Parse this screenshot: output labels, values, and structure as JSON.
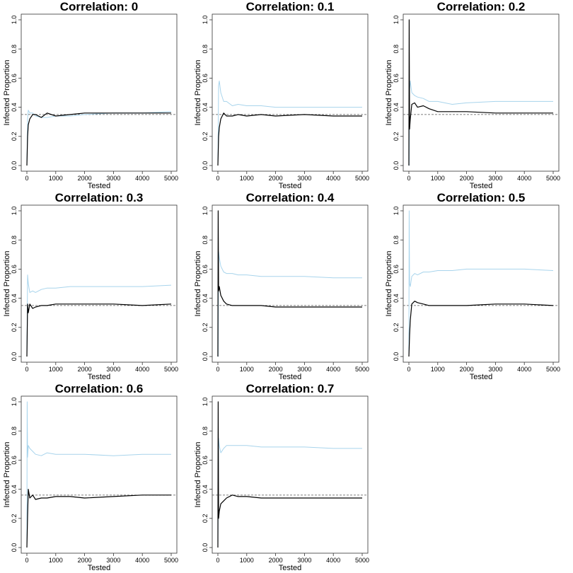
{
  "chart_data": [
    {
      "type": "line",
      "title": "Correlation: 0",
      "xlabel": "Tested",
      "ylabel": "Infected Proportion",
      "xlim": [
        0,
        5000
      ],
      "ylim": [
        0,
        1
      ],
      "xticks": [
        "0",
        "1000",
        "2000",
        "3000",
        "4000",
        "5000"
      ],
      "yticks": [
        "0.0",
        "0.2",
        "0.4",
        "0.6",
        "0.8",
        "1.0"
      ],
      "reference_line": 0.35,
      "series": [
        {
          "color": "#000000",
          "x": [
            0,
            25,
            50,
            100,
            200,
            300,
            500,
            700,
            1000,
            1500,
            2000,
            3000,
            4000,
            5000
          ],
          "y": [
            0.0,
            0.2,
            0.28,
            0.32,
            0.35,
            0.35,
            0.33,
            0.36,
            0.34,
            0.35,
            0.36,
            0.36,
            0.36,
            0.36
          ]
        },
        {
          "color": "#a8d4ec",
          "x": [
            0,
            25,
            50,
            100,
            200,
            300,
            500,
            700,
            1000,
            1500,
            2000,
            3000,
            4000,
            5000
          ],
          "y": [
            0.0,
            0.32,
            0.38,
            0.36,
            0.36,
            0.34,
            0.33,
            0.33,
            0.34,
            0.34,
            0.35,
            0.36,
            0.36,
            0.37
          ]
        }
      ]
    },
    {
      "type": "line",
      "title": "Correlation: 0.1",
      "xlabel": "Tested",
      "ylabel": "Infected Proportion",
      "xlim": [
        0,
        5000
      ],
      "ylim": [
        0,
        1
      ],
      "xticks": [
        "0",
        "1000",
        "2000",
        "3000",
        "4000",
        "5000"
      ],
      "yticks": [
        "0.0",
        "0.2",
        "0.4",
        "0.6",
        "0.8",
        "1.0"
      ],
      "reference_line": 0.35,
      "series": [
        {
          "color": "#000000",
          "x": [
            0,
            25,
            50,
            100,
            200,
            300,
            500,
            700,
            1000,
            1500,
            2000,
            3000,
            4000,
            5000
          ],
          "y": [
            0.0,
            0.2,
            0.26,
            0.32,
            0.36,
            0.34,
            0.34,
            0.35,
            0.34,
            0.35,
            0.34,
            0.35,
            0.34,
            0.34
          ]
        },
        {
          "color": "#a8d4ec",
          "x": [
            0,
            25,
            50,
            100,
            200,
            300,
            500,
            700,
            1000,
            1500,
            2000,
            3000,
            4000,
            5000
          ],
          "y": [
            0.0,
            0.55,
            0.58,
            0.5,
            0.44,
            0.44,
            0.41,
            0.42,
            0.41,
            0.41,
            0.4,
            0.4,
            0.4,
            0.4
          ]
        }
      ]
    },
    {
      "type": "line",
      "title": "Correlation: 0.2",
      "xlabel": "Tested",
      "ylabel": "Infected Proportion",
      "xlim": [
        0,
        5000
      ],
      "ylim": [
        0,
        1
      ],
      "xticks": [
        "0",
        "1000",
        "2000",
        "3000",
        "4000",
        "5000"
      ],
      "yticks": [
        "0.0",
        "0.2",
        "0.4",
        "0.6",
        "0.8",
        "1.0"
      ],
      "reference_line": 0.35,
      "series": [
        {
          "color": "#000000",
          "x": [
            0,
            10,
            25,
            50,
            100,
            200,
            300,
            500,
            700,
            1000,
            1500,
            2000,
            3000,
            4000,
            5000
          ],
          "y": [
            0.0,
            1.0,
            0.25,
            0.32,
            0.42,
            0.43,
            0.4,
            0.41,
            0.39,
            0.37,
            0.37,
            0.37,
            0.36,
            0.36,
            0.36
          ]
        },
        {
          "color": "#a8d4ec",
          "x": [
            0,
            10,
            25,
            50,
            100,
            200,
            300,
            500,
            700,
            1000,
            1500,
            2000,
            3000,
            4000,
            5000
          ],
          "y": [
            0.0,
            0.0,
            0.52,
            0.58,
            0.5,
            0.48,
            0.47,
            0.46,
            0.44,
            0.44,
            0.42,
            0.43,
            0.44,
            0.44,
            0.44
          ]
        }
      ]
    },
    {
      "type": "line",
      "title": "Correlation: 0.3",
      "xlabel": "Tested",
      "ylabel": "Infected Proportion",
      "xlim": [
        0,
        5000
      ],
      "ylim": [
        0,
        1
      ],
      "xticks": [
        "0",
        "1000",
        "2000",
        "3000",
        "4000",
        "5000"
      ],
      "yticks": [
        "0.0",
        "0.2",
        "0.4",
        "0.6",
        "0.8",
        "1.0"
      ],
      "reference_line": 0.35,
      "series": [
        {
          "color": "#000000",
          "x": [
            0,
            25,
            50,
            100,
            200,
            300,
            500,
            700,
            1000,
            1500,
            2000,
            3000,
            4000,
            5000
          ],
          "y": [
            0.0,
            0.36,
            0.3,
            0.36,
            0.33,
            0.34,
            0.35,
            0.35,
            0.36,
            0.36,
            0.36,
            0.36,
            0.35,
            0.36
          ]
        },
        {
          "color": "#a8d4ec",
          "x": [
            0,
            25,
            50,
            100,
            200,
            300,
            500,
            700,
            1000,
            1500,
            2000,
            3000,
            4000,
            5000
          ],
          "y": [
            0.0,
            0.56,
            0.5,
            0.44,
            0.45,
            0.44,
            0.46,
            0.47,
            0.47,
            0.48,
            0.48,
            0.48,
            0.48,
            0.49
          ]
        }
      ]
    },
    {
      "type": "line",
      "title": "Correlation: 0.4",
      "xlabel": "Tested",
      "ylabel": "Infected Proportion",
      "xlim": [
        0,
        5000
      ],
      "ylim": [
        0,
        1
      ],
      "xticks": [
        "0",
        "1000",
        "2000",
        "3000",
        "4000",
        "5000"
      ],
      "yticks": [
        "0.0",
        "0.2",
        "0.4",
        "0.6",
        "0.8",
        "1.0"
      ],
      "reference_line": 0.35,
      "series": [
        {
          "color": "#000000",
          "x": [
            0,
            10,
            25,
            50,
            100,
            200,
            300,
            500,
            700,
            1000,
            1500,
            2000,
            3000,
            4000,
            5000
          ],
          "y": [
            0.0,
            1.0,
            0.45,
            0.48,
            0.42,
            0.38,
            0.36,
            0.35,
            0.35,
            0.35,
            0.35,
            0.34,
            0.34,
            0.34,
            0.34
          ]
        },
        {
          "color": "#a8d4ec",
          "x": [
            0,
            10,
            25,
            50,
            100,
            200,
            300,
            500,
            700,
            1000,
            1500,
            2000,
            3000,
            4000,
            5000
          ],
          "y": [
            0.0,
            0.0,
            0.72,
            0.68,
            0.62,
            0.58,
            0.57,
            0.57,
            0.56,
            0.56,
            0.55,
            0.55,
            0.55,
            0.54,
            0.54
          ]
        }
      ]
    },
    {
      "type": "line",
      "title": "Correlation: 0.5",
      "xlabel": "Tested",
      "ylabel": "Infected Proportion",
      "xlim": [
        0,
        5000
      ],
      "ylim": [
        0,
        1
      ],
      "xticks": [
        "0",
        "1000",
        "2000",
        "3000",
        "4000",
        "5000"
      ],
      "yticks": [
        "0.0",
        "0.2",
        "0.4",
        "0.6",
        "0.8",
        "1.0"
      ],
      "reference_line": 0.35,
      "series": [
        {
          "color": "#000000",
          "x": [
            0,
            25,
            50,
            100,
            200,
            300,
            500,
            700,
            1000,
            1500,
            2000,
            3000,
            4000,
            5000
          ],
          "y": [
            0.0,
            0.15,
            0.25,
            0.36,
            0.38,
            0.37,
            0.36,
            0.35,
            0.35,
            0.35,
            0.35,
            0.36,
            0.36,
            0.35
          ]
        },
        {
          "color": "#a8d4ec",
          "x": [
            0,
            10,
            25,
            50,
            100,
            200,
            300,
            500,
            700,
            1000,
            1500,
            2000,
            3000,
            4000,
            5000
          ],
          "y": [
            0.0,
            1.0,
            0.5,
            0.48,
            0.55,
            0.57,
            0.56,
            0.58,
            0.58,
            0.59,
            0.59,
            0.6,
            0.6,
            0.6,
            0.59
          ]
        }
      ]
    },
    {
      "type": "line",
      "title": "Correlation: 0.6",
      "xlabel": "Tested",
      "ylabel": "Infected Proportion",
      "xlim": [
        0,
        5000
      ],
      "ylim": [
        0,
        1
      ],
      "xticks": [
        "0",
        "1000",
        "2000",
        "3000",
        "4000",
        "5000"
      ],
      "yticks": [
        "0.0",
        "0.2",
        "0.4",
        "0.6",
        "0.8",
        "1.0"
      ],
      "reference_line": 0.36,
      "series": [
        {
          "color": "#000000",
          "x": [
            0,
            25,
            50,
            100,
            200,
            300,
            500,
            700,
            1000,
            1500,
            2000,
            3000,
            4000,
            5000
          ],
          "y": [
            0.0,
            0.22,
            0.4,
            0.34,
            0.36,
            0.33,
            0.34,
            0.34,
            0.35,
            0.35,
            0.34,
            0.35,
            0.36,
            0.36
          ]
        },
        {
          "color": "#a8d4ec",
          "x": [
            0,
            10,
            25,
            50,
            100,
            200,
            300,
            500,
            700,
            1000,
            1500,
            2000,
            3000,
            4000,
            5000
          ],
          "y": [
            0.0,
            1.0,
            0.62,
            0.7,
            0.68,
            0.66,
            0.64,
            0.63,
            0.65,
            0.64,
            0.64,
            0.64,
            0.63,
            0.64,
            0.64
          ]
        }
      ]
    },
    {
      "type": "line",
      "title": "Correlation: 0.7",
      "xlabel": "Tested",
      "ylabel": "Infected Proportion",
      "xlim": [
        0,
        5000
      ],
      "ylim": [
        0,
        1
      ],
      "xticks": [
        "0",
        "1000",
        "2000",
        "3000",
        "4000",
        "5000"
      ],
      "yticks": [
        "0.0",
        "0.2",
        "0.4",
        "0.6",
        "0.8",
        "1.0"
      ],
      "reference_line": 0.36,
      "series": [
        {
          "color": "#000000",
          "x": [
            0,
            10,
            25,
            50,
            100,
            200,
            300,
            500,
            700,
            1000,
            1500,
            2000,
            3000,
            4000,
            5000
          ],
          "y": [
            0.0,
            1.0,
            0.2,
            0.25,
            0.3,
            0.32,
            0.34,
            0.36,
            0.35,
            0.35,
            0.34,
            0.34,
            0.34,
            0.34,
            0.34
          ]
        },
        {
          "color": "#a8d4ec",
          "x": [
            0,
            25,
            50,
            100,
            200,
            300,
            500,
            700,
            1000,
            1500,
            2000,
            3000,
            4000,
            5000
          ],
          "y": [
            0.0,
            0.75,
            0.7,
            0.65,
            0.68,
            0.7,
            0.7,
            0.7,
            0.7,
            0.69,
            0.69,
            0.69,
            0.68,
            0.68
          ]
        }
      ]
    }
  ]
}
